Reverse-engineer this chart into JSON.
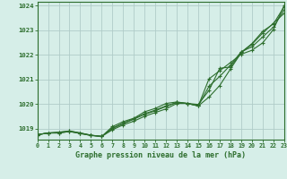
{
  "title": "Graphe pression niveau de la mer (hPa)",
  "bg_color": "#d6eee8",
  "grid_color": "#b0ccc8",
  "line_color": "#2d6e2d",
  "x_labels": [
    "0",
    "1",
    "2",
    "3",
    "4",
    "5",
    "6",
    "7",
    "8",
    "9",
    "10",
    "11",
    "12",
    "13",
    "14",
    "15",
    "16",
    "17",
    "18",
    "19",
    "20",
    "21",
    "22",
    "23"
  ],
  "xlim": [
    0,
    23
  ],
  "ylim": [
    1018.55,
    1024.15
  ],
  "yticks": [
    1019,
    1020,
    1021,
    1022,
    1023,
    1024
  ],
  "series": [
    [
      1018.75,
      1018.82,
      1018.82,
      1018.88,
      1018.8,
      1018.72,
      1018.68,
      1018.95,
      1019.15,
      1019.3,
      1019.5,
      1019.65,
      1019.8,
      1020.02,
      1020.02,
      1019.98,
      1020.55,
      1021.45,
      1021.5,
      1022.1,
      1022.45,
      1022.95,
      1023.25,
      1023.95
    ],
    [
      1018.75,
      1018.82,
      1018.85,
      1018.9,
      1018.82,
      1018.73,
      1018.68,
      1019.0,
      1019.2,
      1019.38,
      1019.58,
      1019.72,
      1019.9,
      1020.06,
      1020.02,
      1019.92,
      1020.28,
      1020.75,
      1021.42,
      1022.08,
      1022.42,
      1022.88,
      1023.28,
      1023.68
    ],
    [
      1018.75,
      1018.82,
      1018.82,
      1018.88,
      1018.8,
      1018.72,
      1018.68,
      1019.08,
      1019.28,
      1019.42,
      1019.68,
      1019.82,
      1020.02,
      1020.08,
      1020.02,
      1019.92,
      1021.02,
      1021.35,
      1021.68,
      1022.02,
      1022.18,
      1022.48,
      1023.02,
      1024.0
    ],
    [
      1018.75,
      1018.82,
      1018.85,
      1018.9,
      1018.82,
      1018.73,
      1018.68,
      1019.02,
      1019.22,
      1019.4,
      1019.6,
      1019.75,
      1019.92,
      1020.06,
      1020.02,
      1019.92,
      1020.72,
      1021.12,
      1021.58,
      1022.12,
      1022.32,
      1022.72,
      1023.12,
      1023.82
    ]
  ]
}
